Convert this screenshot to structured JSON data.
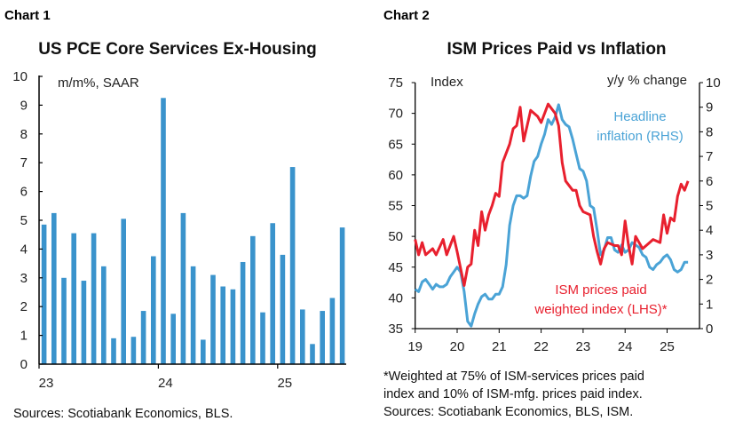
{
  "chart_data": [
    {
      "type": "bar",
      "header": "Chart 1",
      "title": "US PCE Core Services Ex-Housing",
      "ylabel": "m/m%, SAAR",
      "ylim": [
        0,
        10
      ],
      "yticks": [
        "0",
        "1",
        "2",
        "3",
        "4",
        "5",
        "6",
        "7",
        "8",
        "9",
        "10"
      ],
      "xticks": [
        "23",
        "24",
        "25"
      ],
      "color": "#3a93cc",
      "categories": [
        "2023-01",
        "2023-02",
        "2023-03",
        "2023-04",
        "2023-05",
        "2023-06",
        "2023-07",
        "2023-08",
        "2023-09",
        "2023-10",
        "2023-11",
        "2023-12",
        "2024-01",
        "2024-02",
        "2024-03",
        "2024-04",
        "2024-05",
        "2024-06",
        "2024-07",
        "2024-08",
        "2024-09",
        "2024-10",
        "2024-11",
        "2024-12",
        "2025-01",
        "2025-02",
        "2025-03",
        "2025-04",
        "2025-05",
        "2025-06",
        "2025-07"
      ],
      "values": [
        4.85,
        5.25,
        3.0,
        4.55,
        2.9,
        4.55,
        3.4,
        0.9,
        5.05,
        0.95,
        1.85,
        3.75,
        9.25,
        1.75,
        5.25,
        3.4,
        0.85,
        3.1,
        2.7,
        2.6,
        3.55,
        4.45,
        1.8,
        4.9,
        3.8,
        6.85,
        1.9,
        0.7,
        1.85,
        2.3,
        4.75
      ],
      "source": "Sources: Scotiabank Economics, BLS."
    },
    {
      "type": "line",
      "header": "Chart 2",
      "title": "ISM Prices Paid vs Inflation",
      "ylabel_left": "Index",
      "ylabel_right": "y/y % change",
      "ylim_left": [
        35,
        75
      ],
      "ylim_right": [
        0,
        10
      ],
      "yticks_left": [
        "35",
        "40",
        "45",
        "50",
        "55",
        "60",
        "65",
        "70",
        "75"
      ],
      "yticks_right": [
        "0",
        "1",
        "2",
        "3",
        "4",
        "5",
        "6",
        "7",
        "8",
        "9",
        "10"
      ],
      "xticks": [
        "19",
        "20",
        "21",
        "22",
        "23",
        "24",
        "25"
      ],
      "series": [
        {
          "name": "ISM prices paid weighted index (LHS)*",
          "label_lines": [
            "ISM prices paid",
            "weighted index (LHS)*"
          ],
          "axis": "left",
          "color": "#e8202e",
          "x": [
            "2019-01",
            "2019-02",
            "2019-03",
            "2019-04",
            "2019-06",
            "2019-07",
            "2019-09",
            "2019-10",
            "2019-12",
            "2020-01",
            "2020-03",
            "2020-04",
            "2020-05",
            "2020-06",
            "2020-07",
            "2020-08",
            "2020-09",
            "2020-10",
            "2020-11",
            "2020-12",
            "2021-01",
            "2021-02",
            "2021-04",
            "2021-05",
            "2021-06",
            "2021-07",
            "2021-08",
            "2021-10",
            "2021-12",
            "2022-01",
            "2022-03",
            "2022-05",
            "2022-06",
            "2022-07",
            "2022-08",
            "2022-10",
            "2022-11",
            "2022-12",
            "2023-01",
            "2023-03",
            "2023-04",
            "2023-05",
            "2023-06",
            "2023-07",
            "2023-08",
            "2023-10",
            "2023-11",
            "2023-12",
            "2024-01",
            "2024-02",
            "2024-03",
            "2024-04",
            "2024-06",
            "2024-08",
            "2024-09",
            "2024-11",
            "2024-12",
            "2025-01",
            "2025-02",
            "2025-03",
            "2025-04",
            "2025-05",
            "2025-06",
            "2025-07"
          ],
          "values": [
            49.5,
            47,
            49,
            47,
            48,
            47,
            49.5,
            47,
            50,
            47.5,
            42,
            45,
            45.5,
            51,
            48.5,
            54,
            51,
            53.5,
            55,
            57,
            56.5,
            62,
            65,
            67.5,
            68,
            71,
            65.5,
            70.5,
            69.5,
            68.5,
            71.5,
            70,
            68,
            62,
            59,
            57.5,
            57.5,
            55,
            54,
            53.5,
            50,
            47.5,
            45.5,
            48,
            49,
            48.5,
            48.5,
            47,
            52.5,
            48.5,
            45.5,
            50,
            48,
            49,
            49.5,
            49,
            53.5,
            50.5,
            53,
            52.5,
            56.5,
            58.5,
            57.5,
            59
          ]
        },
        {
          "name": "Headline inflation (RHS)",
          "label_lines": [
            "Headline",
            "inflation (RHS)"
          ],
          "axis": "right",
          "color": "#4aa3d6",
          "x": [
            "2019-01",
            "2019-02",
            "2019-03",
            "2019-04",
            "2019-05",
            "2019-06",
            "2019-07",
            "2019-08",
            "2019-09",
            "2019-10",
            "2019-11",
            "2019-12",
            "2020-01",
            "2020-02",
            "2020-03",
            "2020-04",
            "2020-05",
            "2020-06",
            "2020-07",
            "2020-08",
            "2020-09",
            "2020-10",
            "2020-11",
            "2020-12",
            "2021-01",
            "2021-02",
            "2021-03",
            "2021-04",
            "2021-05",
            "2021-06",
            "2021-07",
            "2021-08",
            "2021-09",
            "2021-10",
            "2021-11",
            "2021-12",
            "2022-01",
            "2022-02",
            "2022-03",
            "2022-04",
            "2022-05",
            "2022-06",
            "2022-07",
            "2022-08",
            "2022-09",
            "2022-10",
            "2022-11",
            "2022-12",
            "2023-01",
            "2023-02",
            "2023-03",
            "2023-04",
            "2023-05",
            "2023-06",
            "2023-07",
            "2023-08",
            "2023-09",
            "2023-10",
            "2023-11",
            "2023-12",
            "2024-01",
            "2024-02",
            "2024-03",
            "2024-04",
            "2024-05",
            "2024-06",
            "2024-07",
            "2024-08",
            "2024-09",
            "2024-10",
            "2024-11",
            "2024-12",
            "2025-01",
            "2025-02",
            "2025-03",
            "2025-04",
            "2025-05",
            "2025-06",
            "2025-07"
          ],
          "values": [
            1.6,
            1.5,
            1.9,
            2.0,
            1.8,
            1.6,
            1.8,
            1.7,
            1.7,
            1.8,
            2.1,
            2.3,
            2.5,
            2.3,
            1.5,
            0.3,
            0.1,
            0.6,
            1.0,
            1.3,
            1.4,
            1.2,
            1.2,
            1.4,
            1.4,
            1.7,
            2.6,
            4.2,
            5.0,
            5.4,
            5.4,
            5.3,
            5.4,
            6.2,
            6.8,
            7.0,
            7.5,
            7.9,
            8.5,
            8.3,
            8.6,
            9.1,
            8.5,
            8.3,
            8.2,
            7.7,
            7.1,
            6.5,
            6.4,
            6.0,
            5.0,
            4.9,
            4.0,
            3.0,
            3.2,
            3.7,
            3.7,
            3.2,
            3.1,
            3.4,
            3.1,
            3.2,
            3.5,
            3.4,
            3.3,
            3.0,
            2.9,
            2.5,
            2.4,
            2.6,
            2.7,
            2.9,
            3.0,
            2.8,
            2.4,
            2.3,
            2.4,
            2.7,
            2.7
          ]
        }
      ],
      "footnote": [
        "*Weighted at 75% of ISM-services prices paid",
        "index and 10% of ISM-mfg. prices paid index.",
        "Sources: Scotiabank Economics, BLS, ISM."
      ]
    }
  ]
}
